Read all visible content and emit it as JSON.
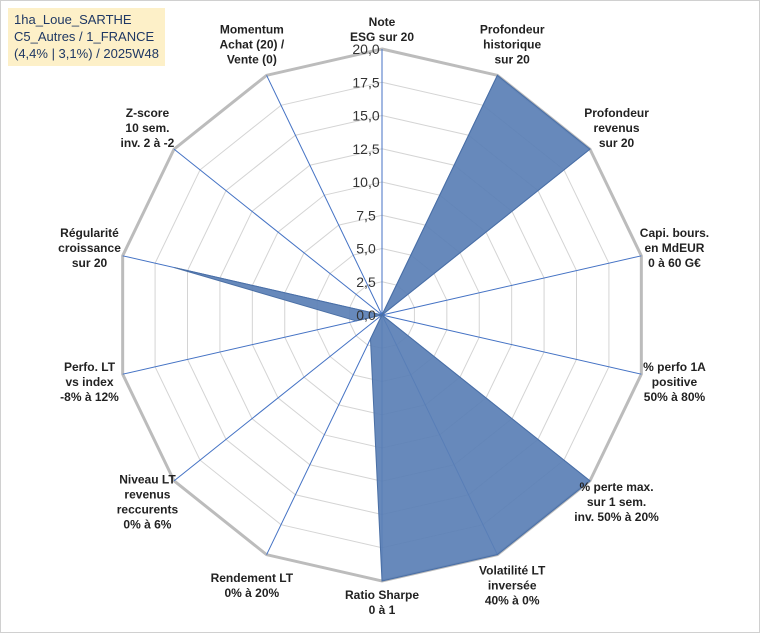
{
  "info_box": {
    "line1": "1ha_Loue_SARTHE",
    "line2": "C5_Autres / 1_FRANCE",
    "line3": "(4,4% | 3,1%) / 2025W48"
  },
  "chart_data": {
    "type": "radar",
    "title": "",
    "rmin": 0,
    "rmax": 20,
    "ticks": [
      "0,0",
      "2,5",
      "5,0",
      "7,5",
      "10,0",
      "12,5",
      "15,0",
      "17,5",
      "20,0"
    ],
    "tick_values": [
      0,
      2.5,
      5,
      7.5,
      10,
      12.5,
      15,
      17.5,
      20
    ],
    "axes": [
      {
        "lines": [
          "Note",
          "ESG sur 20"
        ]
      },
      {
        "lines": [
          "Profondeur",
          "historique",
          "sur 20"
        ]
      },
      {
        "lines": [
          "Profondeur",
          "revenus",
          "sur 20"
        ]
      },
      {
        "lines": [
          "Capi. bours.",
          "en MdEUR",
          "0 à 60 G€"
        ]
      },
      {
        "lines": [
          "% perfo 1A",
          "positive",
          "50% à 80%"
        ]
      },
      {
        "lines": [
          "% perte max.",
          "sur 1 sem.",
          "inv. 50% à 20%"
        ]
      },
      {
        "lines": [
          "Volatilité LT",
          "inversée",
          "40% à 0%"
        ]
      },
      {
        "lines": [
          "Ratio Sharpe",
          "0 à 1"
        ]
      },
      {
        "lines": [
          "Rendement LT",
          "0% à 20%"
        ]
      },
      {
        "lines": [
          "Niveau LT",
          "revenus",
          "reccurents",
          "0% à 6%"
        ]
      },
      {
        "lines": [
          "Perfo. LT",
          "vs index",
          "-8% à 12%"
        ]
      },
      {
        "lines": [
          "Régularité",
          "croissance",
          "sur 20"
        ]
      },
      {
        "lines": [
          "Z-score",
          "10 sem.",
          "inv. 2 à -2"
        ]
      },
      {
        "lines": [
          "Momentum",
          "Achat (20) /",
          "Vente (0)"
        ]
      }
    ],
    "series": [
      {
        "values": [
          0,
          20,
          20,
          0,
          0,
          20,
          20,
          20,
          2,
          0,
          2,
          16,
          0,
          0
        ]
      }
    ],
    "colors": {
      "fill": "#5a7fb5",
      "stroke": "#4a6fa5",
      "grid": "#d4d4d4",
      "outer": "#bcbcbc",
      "spoke": "#4472c4"
    }
  }
}
